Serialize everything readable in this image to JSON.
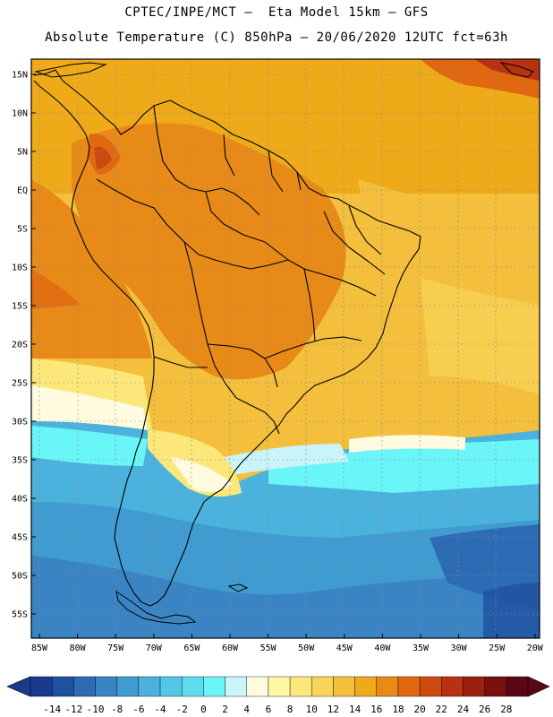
{
  "header": {
    "title_line1": "CPTEC/INPE/MCT –  Eta Model 15km – GFS",
    "title_line2": "Absolute Temperature (C) 850hPa – 20/06/2020 12UTC fct=63h"
  },
  "map": {
    "lat_labels": [
      "15N",
      "10N",
      "5N",
      "EQ",
      "5S",
      "10S",
      "15S",
      "20S",
      "25S",
      "30S",
      "35S",
      "40S",
      "45S",
      "50S",
      "55S"
    ],
    "lon_labels": [
      "85W",
      "80W",
      "75W",
      "70W",
      "65W",
      "60W",
      "55W",
      "50W",
      "45W",
      "40W",
      "35W",
      "30W",
      "25W",
      "20W"
    ]
  },
  "legend": {
    "values": [
      "-14",
      "-12",
      "-10",
      "-8",
      "-6",
      "-4",
      "-2",
      "0",
      "2",
      "4",
      "6",
      "8",
      "10",
      "12",
      "14",
      "16",
      "18",
      "20",
      "22",
      "24",
      "26",
      "28"
    ],
    "colors": [
      "#1a3a8c",
      "#2050a0",
      "#2d6cb4",
      "#3a84c4",
      "#3f9bd0",
      "#4ab2dc",
      "#52c7e6",
      "#5cdcec",
      "#6af5f8",
      "#c8f4fa",
      "#fffbe0",
      "#fdf7a4",
      "#fce87a",
      "#f9d45a",
      "#f3bf3c",
      "#efaa1a",
      "#e88a18",
      "#e06810",
      "#cc4a10",
      "#b83210",
      "#9c2010",
      "#7a1010",
      "#5a0818"
    ]
  }
}
